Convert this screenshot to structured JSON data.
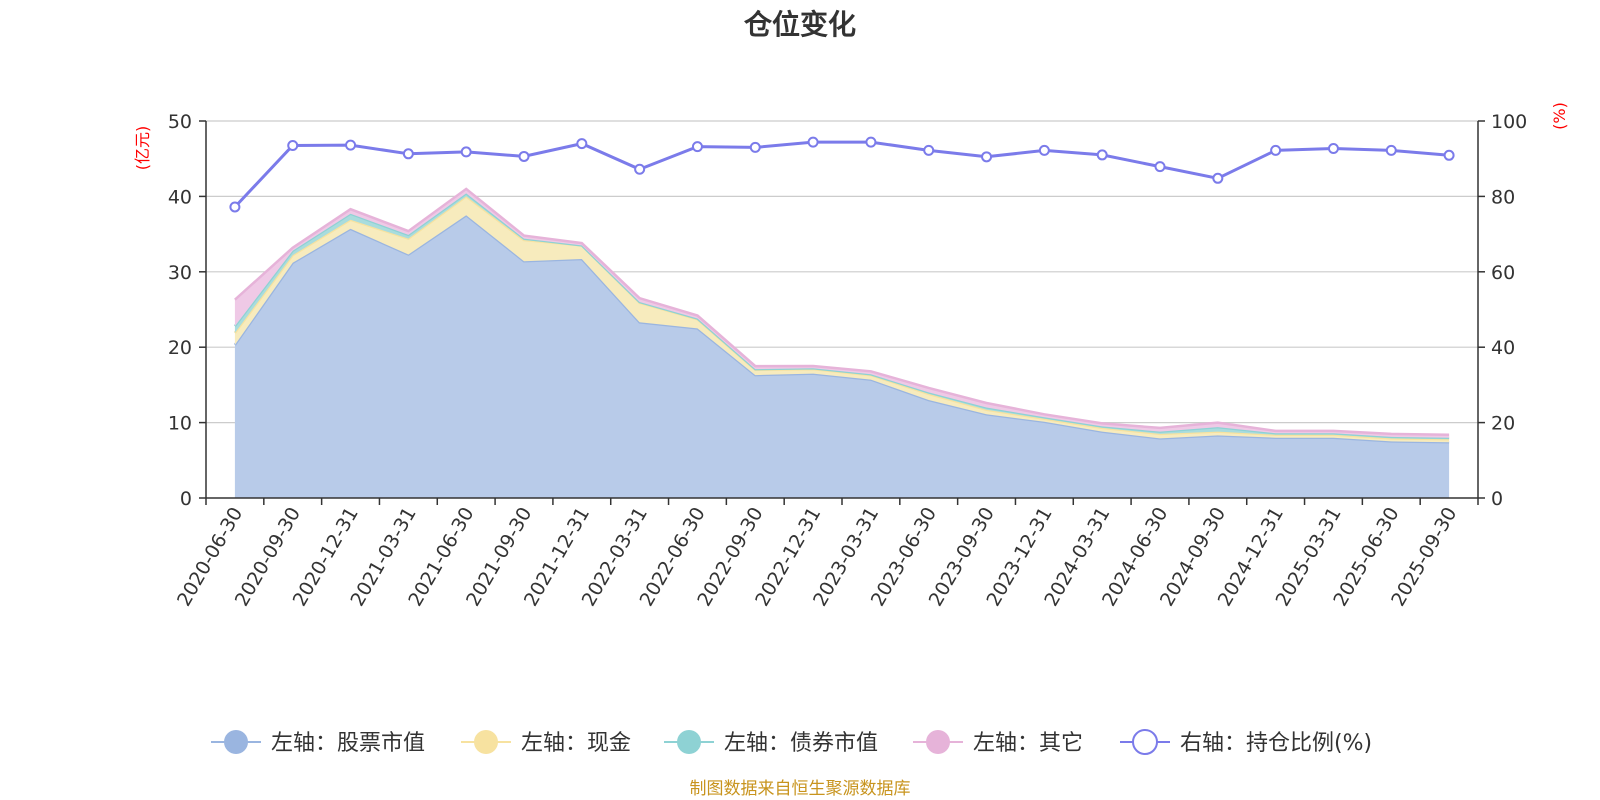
{
  "chart_data": {
    "type": "area",
    "title": "仓位变化",
    "categories": [
      "2020-06-30",
      "2020-09-30",
      "2020-12-31",
      "2021-03-31",
      "2021-06-30",
      "2021-09-30",
      "2021-12-31",
      "2022-03-31",
      "2022-06-30",
      "2022-09-30",
      "2022-12-31",
      "2023-03-31",
      "2023-06-30",
      "2023-09-30",
      "2023-12-31",
      "2024-03-31",
      "2024-06-30",
      "2024-09-30",
      "2024-12-31",
      "2025-03-31",
      "2025-06-30",
      "2025-09-30"
    ],
    "left_axis": {
      "unit": "(亿元)",
      "ylim": [
        0,
        50
      ],
      "ticks": [
        0,
        10,
        20,
        30,
        40,
        50
      ]
    },
    "right_axis": {
      "unit": "(%)",
      "ylim": [
        0,
        100
      ],
      "ticks": [
        0,
        20,
        40,
        60,
        80,
        100
      ]
    },
    "series": [
      {
        "name": "左轴：股票市值",
        "axis": "left",
        "kind": "stacked-area",
        "color": "#9ab5e0",
        "fill": "#b8cbe9",
        "values": [
          20.3,
          31.2,
          35.7,
          32.3,
          37.5,
          31.4,
          31.7,
          23.3,
          22.5,
          16.3,
          16.5,
          15.7,
          13.0,
          11.1,
          10.1,
          8.8,
          7.9,
          8.3,
          8.0,
          8.0,
          7.5,
          7.4
        ]
      },
      {
        "name": "左轴：现金",
        "axis": "left",
        "kind": "stacked-area",
        "color": "#f7e2a0",
        "fill": "#f7ebbd",
        "values": [
          1.6,
          1.0,
          1.2,
          2.1,
          2.5,
          2.8,
          1.8,
          2.6,
          1.2,
          0.7,
          0.6,
          0.6,
          0.8,
          0.6,
          0.4,
          0.5,
          0.6,
          0.5,
          0.4,
          0.4,
          0.4,
          0.4
        ]
      },
      {
        "name": "左轴：债券市值",
        "axis": "left",
        "kind": "stacked-area",
        "color": "#8ed2d4",
        "fill": "#a9dcdd",
        "values": [
          0.9,
          0.6,
          0.8,
          0.5,
          0.4,
          0.2,
          0.0,
          0.1,
          0.1,
          0.1,
          0.1,
          0.1,
          0.2,
          0.3,
          0.2,
          0.2,
          0.3,
          0.6,
          0.2,
          0.2,
          0.2,
          0.2
        ]
      },
      {
        "name": "左轴：其它",
        "axis": "left",
        "kind": "stacked-area",
        "color": "#e6b3d9",
        "fill": "#efc9e6",
        "values": [
          3.5,
          0.4,
          0.6,
          0.5,
          0.6,
          0.4,
          0.3,
          0.5,
          0.4,
          0.4,
          0.3,
          0.4,
          0.6,
          0.6,
          0.4,
          0.4,
          0.5,
          0.6,
          0.3,
          0.3,
          0.4,
          0.4
        ]
      },
      {
        "name": "右轴：持仓比例(%)",
        "axis": "right",
        "kind": "line",
        "color": "#7b7bea",
        "values": [
          77.2,
          93.5,
          93.6,
          91.3,
          91.8,
          90.6,
          94.0,
          87.2,
          93.2,
          93.0,
          94.4,
          94.4,
          92.2,
          90.5,
          92.2,
          91.0,
          87.9,
          84.8,
          92.2,
          92.7,
          92.2,
          90.9
        ]
      }
    ],
    "grid": true,
    "legend_position": "bottom-center"
  },
  "source_note": "制图数据来自恒生聚源数据库"
}
